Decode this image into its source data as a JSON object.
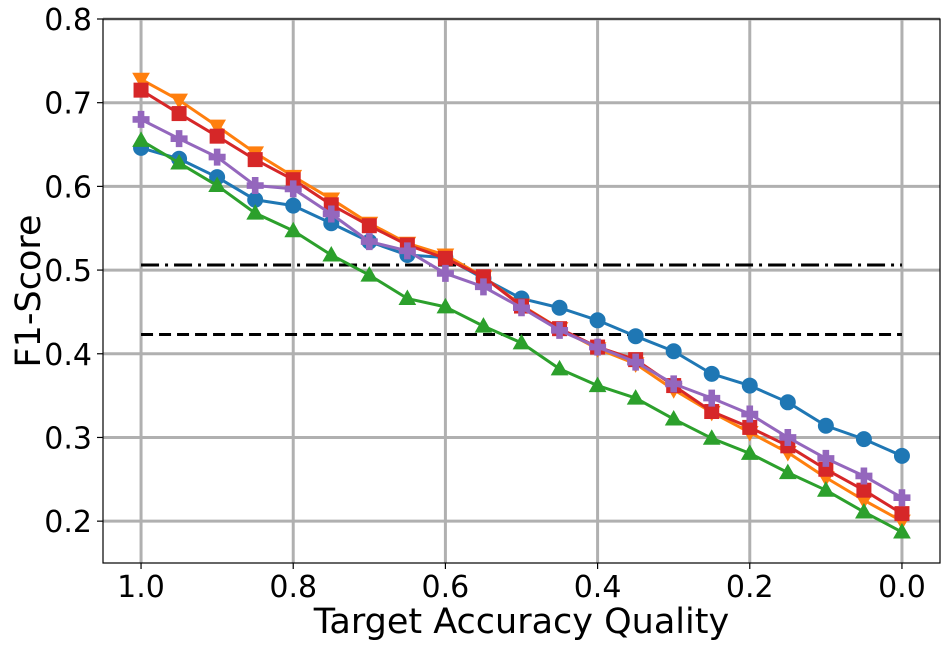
{
  "chart_data": {
    "type": "line",
    "title": "",
    "xlabel": "Target Accuracy Quality",
    "ylabel": "F1-Score",
    "xlim": [
      1.05,
      -0.05
    ],
    "ylim": [
      0.15,
      0.8
    ],
    "x_inverted": true,
    "grid": true,
    "legend": "none",
    "x_ticks": [
      1.0,
      0.8,
      0.6,
      0.4,
      0.2,
      0.0
    ],
    "x_tick_labels": [
      "1.0",
      "0.8",
      "0.6",
      "0.4",
      "0.2",
      "0.0"
    ],
    "y_ticks": [
      0.2,
      0.3,
      0.4,
      0.5,
      0.6,
      0.7,
      0.8
    ],
    "y_tick_labels": [
      "0.2",
      "0.3",
      "0.4",
      "0.5",
      "0.6",
      "0.7",
      "0.8"
    ],
    "x": [
      1.0,
      0.95,
      0.9,
      0.85,
      0.8,
      0.75,
      0.7,
      0.65,
      0.6,
      0.55,
      0.5,
      0.45,
      0.4,
      0.35,
      0.3,
      0.25,
      0.2,
      0.15,
      0.1,
      0.05,
      0.0
    ],
    "series": [
      {
        "color": "#1f77b4",
        "marker": "circle",
        "values": [
          0.646,
          0.633,
          0.611,
          0.584,
          0.577,
          0.556,
          0.534,
          0.518,
          0.515,
          0.49,
          0.466,
          0.455,
          0.44,
          0.421,
          0.403,
          0.376,
          0.362,
          0.342,
          0.314,
          0.298,
          0.278
        ]
      },
      {
        "color": "#ff7f0e",
        "marker": "triangle-down",
        "values": [
          0.728,
          0.703,
          0.672,
          0.64,
          0.612,
          0.585,
          0.556,
          0.532,
          0.518,
          0.492,
          0.458,
          0.43,
          0.406,
          0.388,
          0.357,
          0.33,
          0.306,
          0.282,
          0.252,
          0.225,
          0.2
        ]
      },
      {
        "color": "#2ca02c",
        "marker": "triangle-up",
        "values": [
          0.655,
          0.628,
          0.601,
          0.568,
          0.547,
          0.518,
          0.494,
          0.466,
          0.456,
          0.433,
          0.413,
          0.382,
          0.362,
          0.347,
          0.322,
          0.299,
          0.281,
          0.258,
          0.237,
          0.211,
          0.187
        ]
      },
      {
        "color": "#d62728",
        "marker": "square",
        "values": [
          0.715,
          0.687,
          0.66,
          0.632,
          0.608,
          0.578,
          0.553,
          0.53,
          0.514,
          0.492,
          0.457,
          0.43,
          0.408,
          0.393,
          0.362,
          0.331,
          0.312,
          0.29,
          0.262,
          0.237,
          0.209
        ]
      },
      {
        "color": "#9467bd",
        "marker": "plus",
        "values": [
          0.68,
          0.657,
          0.635,
          0.601,
          0.597,
          0.567,
          0.534,
          0.523,
          0.496,
          0.48,
          0.455,
          0.428,
          0.408,
          0.39,
          0.364,
          0.347,
          0.328,
          0.3,
          0.275,
          0.254,
          0.228
        ]
      }
    ],
    "reference_lines": [
      {
        "y": 0.506,
        "style": "dashdot",
        "color": "#000000",
        "x_from": 1.0,
        "x_to": 0.0
      },
      {
        "y": 0.423,
        "style": "dashed",
        "color": "#000000",
        "x_from": 1.0,
        "x_to": 0.0
      }
    ]
  }
}
